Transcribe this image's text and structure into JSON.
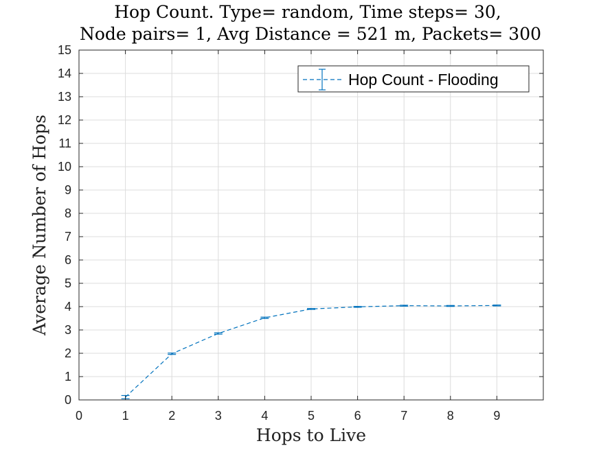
{
  "chart_data": {
    "type": "line",
    "title": "Hop Count. Type= random, Time steps= 30,",
    "subtitle": "Node pairs= 1, Avg Distance = 521 m, Packets= 300",
    "xlabel": "Hops to Live",
    "ylabel": "Average Number of Hops",
    "xlim": [
      0,
      10
    ],
    "ylim": [
      0,
      15
    ],
    "xticks": [
      0,
      1,
      2,
      3,
      4,
      5,
      6,
      7,
      8,
      9
    ],
    "yticks": [
      0,
      1,
      2,
      3,
      4,
      5,
      6,
      7,
      8,
      9,
      10,
      11,
      12,
      13,
      14,
      15
    ],
    "grid": true,
    "legend_placement": "top-right",
    "series": [
      {
        "name": "Hop Count - Flooding",
        "color": "#0072BD",
        "line_style": "dashed",
        "error_bars": true,
        "x": [
          1,
          2,
          3,
          4,
          5,
          6,
          7,
          8,
          9
        ],
        "y": [
          0.12,
          1.98,
          2.85,
          3.52,
          3.9,
          3.99,
          4.04,
          4.03,
          4.05
        ],
        "err": [
          0.07,
          0.03,
          0.03,
          0.03,
          0.02,
          0.02,
          0.02,
          0.02,
          0.02
        ]
      }
    ]
  }
}
